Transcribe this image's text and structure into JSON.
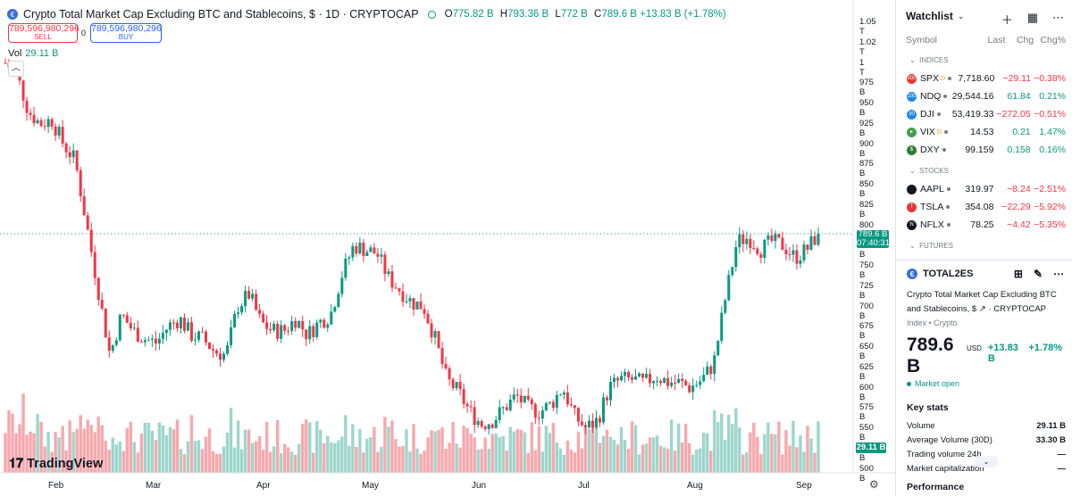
{
  "symbol": {
    "title": "Crypto Total Market Cap Excluding BTC and Stablecoins, $ · 1D · CRYPTOCAP",
    "o_label": "O",
    "o": "775.82 B",
    "h_label": "H",
    "h": "793.36 B",
    "l_label": "L",
    "l": "772 B",
    "c_label": "C",
    "c": "789.6 B",
    "change": "+13.83 B (+1.78%)"
  },
  "trade": {
    "sell_price": "789,596,980,296",
    "sell_label": "SELL",
    "spread": "0",
    "buy_price": "789,596,980,296",
    "buy_label": "BUY"
  },
  "volume": {
    "label": "Vol",
    "value": "29.11 B"
  },
  "brand": "TradingView",
  "price_axis": [
    "1.05 T",
    "1.02 T",
    "1 T",
    "975 B",
    "950 B",
    "925 B",
    "900 B",
    "875 B",
    "850 B",
    "825 B",
    "800 B",
    "775 B",
    "750 B",
    "725 B",
    "700 B",
    "675 B",
    "650 B",
    "625 B",
    "600 B",
    "575 B",
    "550 B",
    "525 B",
    "500 B"
  ],
  "current_price": {
    "price": "789.6 B",
    "countdown": "07:40:31"
  },
  "volume_badge": "29.11 B",
  "time_axis": [
    "Feb",
    "Mar",
    "Apr",
    "May",
    "Jun",
    "Jul",
    "Aug",
    "Sep"
  ],
  "colors": {
    "up": "#089981",
    "down": "#f23645",
    "up_vol": "#9dd6cc",
    "down_vol": "#f7a8ad",
    "accent": "#2962ff"
  },
  "chart_data": {
    "type": "candlestick",
    "x": [
      "Feb",
      "Mar",
      "Apr",
      "May",
      "Jun",
      "Jul",
      "Aug",
      "Sep"
    ],
    "ylim": [
      500,
      1060
    ],
    "ylabel_unit": "B USD",
    "close_path": [
      1000,
      985,
      940,
      925,
      930,
      900,
      880,
      800,
      720,
      640,
      690,
      670,
      660,
      655,
      675,
      685,
      665,
      660,
      645,
      640,
      700,
      715,
      680,
      670,
      670,
      685,
      665,
      680,
      690,
      740,
      775,
      770,
      765,
      735,
      720,
      705,
      700,
      660,
      610,
      595,
      570,
      555,
      560,
      575,
      590,
      575,
      570,
      580,
      600,
      565,
      550,
      560,
      600,
      610,
      610,
      605,
      615,
      607,
      606,
      600,
      610,
      630,
      710,
      780,
      785,
      770,
      780,
      775,
      760,
      770,
      789.6
    ],
    "current_close": 789.6
  },
  "watchlist": {
    "title": "Watchlist",
    "columns": {
      "symbol": "Symbol",
      "last": "Last",
      "chg": "Chg",
      "chgp": "Chg%"
    },
    "sections": [
      {
        "name": "INDICES",
        "rows": [
          {
            "sym": "SPX",
            "icon": "500",
            "iconColor": "#e53935",
            "sup": "D",
            "last": "7,718.60",
            "chg": "−29.11",
            "chgp": "−0.38%",
            "dir": "neg"
          },
          {
            "sym": "NDQ",
            "icon": "100",
            "iconColor": "#1e88e5",
            "sup": "",
            "last": "29,544.16",
            "chg": "61.84",
            "chgp": "0.21%",
            "dir": "pos"
          },
          {
            "sym": "DJI",
            "icon": "30",
            "iconColor": "#1e88e5",
            "sup": "",
            "last": "53,419.33",
            "chg": "−272.05",
            "chgp": "−0.51%",
            "dir": "neg"
          },
          {
            "sym": "VIX",
            "icon": "▸",
            "iconColor": "#43a047",
            "sup": "D",
            "last": "14.53",
            "chg": "0.21",
            "chgp": "1.47%",
            "dir": "pos"
          },
          {
            "sym": "DXY",
            "icon": "$",
            "iconColor": "#2e7d32",
            "sup": "",
            "last": "99.159",
            "chg": "0.158",
            "chgp": "0.16%",
            "dir": "pos"
          }
        ]
      },
      {
        "name": "STOCKS",
        "rows": [
          {
            "sym": "AAPL",
            "icon": "",
            "iconColor": "#131722",
            "sup": "",
            "last": "319.97",
            "chg": "−8.24",
            "chgp": "−2.51%",
            "dir": "neg"
          },
          {
            "sym": "TSLA",
            "icon": "T",
            "iconColor": "#e53935",
            "sup": "",
            "last": "354.08",
            "chg": "−22.29",
            "chgp": "−5.92%",
            "dir": "neg"
          },
          {
            "sym": "NFLX",
            "icon": "N",
            "iconColor": "#131722",
            "sup": "",
            "last": "78.25",
            "chg": "−4.42",
            "chgp": "−5.35%",
            "dir": "neg"
          }
        ]
      },
      {
        "name": "FUTURES",
        "rows": []
      }
    ]
  },
  "details": {
    "ticker": "TOTAL2ES",
    "name": "Crypto Total Market Cap Excluding BTC and Stablecoins, $",
    "exchange": "CRYPTOCAP",
    "meta": "Index • Crypto",
    "price": "789.6 B",
    "currency": "USD",
    "change": "+13.83 B",
    "change_pct": "+1.78%",
    "status": "Market open",
    "key_stats_title": "Key stats",
    "stats": [
      {
        "label": "Volume",
        "value": "29.11 B"
      },
      {
        "label": "Average Volume (30D)",
        "value": "33.30 B"
      },
      {
        "label": "Trading volume 24h",
        "value": "—"
      },
      {
        "label": "Market capitalization",
        "value": "—"
      }
    ],
    "performance": "Performance"
  }
}
